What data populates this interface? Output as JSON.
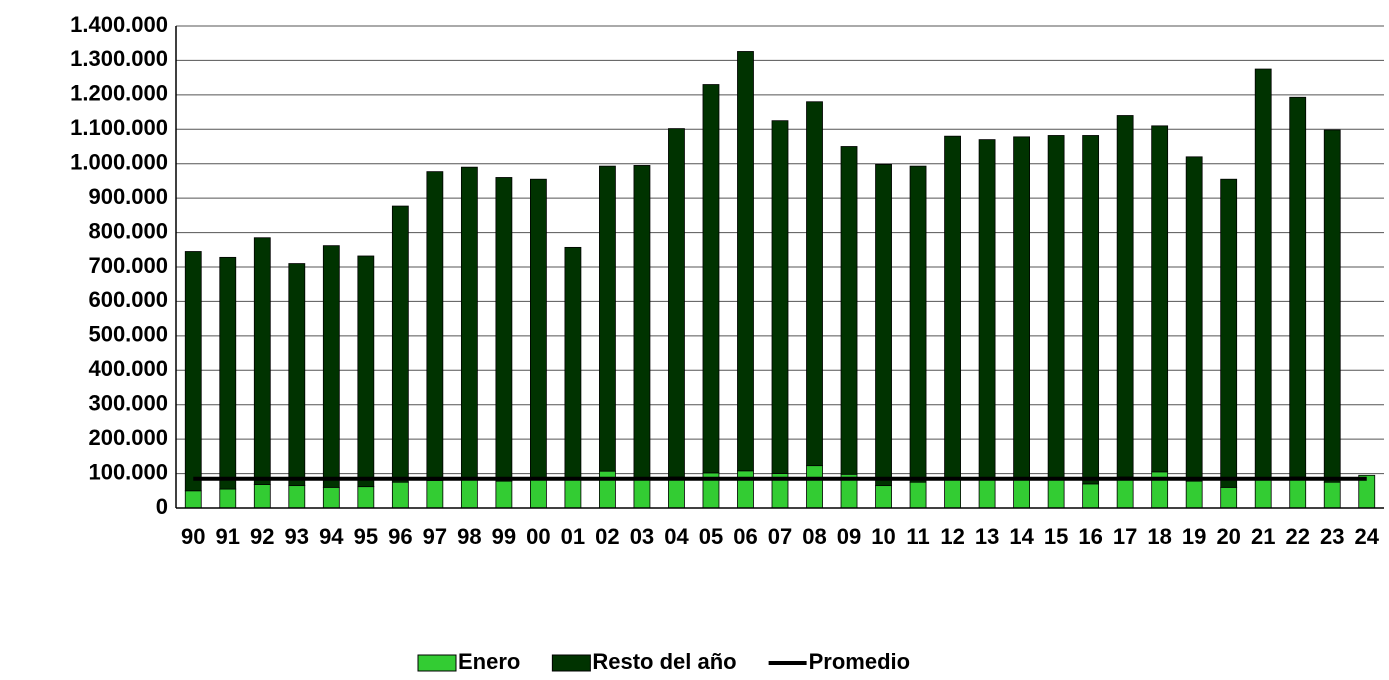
{
  "chart_data": {
    "type": "bar",
    "stacked": true,
    "categories": [
      "90",
      "91",
      "92",
      "93",
      "94",
      "95",
      "96",
      "97",
      "98",
      "99",
      "00",
      "01",
      "02",
      "03",
      "04",
      "05",
      "06",
      "07",
      "08",
      "09",
      "10",
      "11",
      "12",
      "13",
      "14",
      "15",
      "16",
      "17",
      "18",
      "19",
      "20",
      "21",
      "22",
      "23",
      "24"
    ],
    "series": [
      {
        "name": "Enero",
        "type": "bar",
        "color": "#33cc33",
        "values": [
          50000,
          55000,
          68000,
          65000,
          60000,
          62000,
          75000,
          80000,
          82000,
          78000,
          85000,
          85000,
          107000,
          88000,
          90000,
          102000,
          108000,
          100000,
          123000,
          98000,
          65000,
          75000,
          85000,
          88000,
          85000,
          88000,
          70000,
          90000,
          105000,
          78000,
          60000,
          88000,
          90000,
          75000,
          95000
        ]
      },
      {
        "name": "Resto del año",
        "type": "bar",
        "color": "#003300",
        "values": [
          695000,
          673000,
          717000,
          645000,
          702000,
          670000,
          802000,
          897000,
          908000,
          882000,
          870000,
          672000,
          886000,
          907000,
          1012000,
          1128000,
          1218000,
          1025000,
          1057000,
          952000,
          933000,
          918000,
          995000,
          982000,
          993000,
          994000,
          1012000,
          1050000,
          1005000,
          942000,
          895000,
          1187000,
          1103000,
          1023000,
          0
        ]
      },
      {
        "name": "Promedio",
        "type": "line",
        "color": "#000000",
        "values": [
          85000,
          85000,
          85000,
          85000,
          85000,
          85000,
          85000,
          85000,
          85000,
          85000,
          85000,
          85000,
          85000,
          85000,
          85000,
          85000,
          85000,
          85000,
          85000,
          85000,
          85000,
          85000,
          85000,
          85000,
          85000,
          85000,
          85000,
          85000,
          85000,
          85000,
          85000,
          85000,
          85000,
          85000,
          85000
        ]
      }
    ],
    "ylim": [
      0,
      1400000
    ],
    "yticks": [
      {
        "value": 0,
        "label": "0"
      },
      {
        "value": 100000,
        "label": "100.000"
      },
      {
        "value": 200000,
        "label": "200.000"
      },
      {
        "value": 300000,
        "label": "300.000"
      },
      {
        "value": 400000,
        "label": "400.000"
      },
      {
        "value": 500000,
        "label": "500.000"
      },
      {
        "value": 600000,
        "label": "600.000"
      },
      {
        "value": 700000,
        "label": "700.000"
      },
      {
        "value": 800000,
        "label": "800.000"
      },
      {
        "value": 900000,
        "label": "900.000"
      },
      {
        "value": 1000000,
        "label": "1.000.000"
      },
      {
        "value": 1100000,
        "label": "1.100.000"
      },
      {
        "value": 1200000,
        "label": "1.200.000"
      },
      {
        "value": 1300000,
        "label": "1.300.000"
      },
      {
        "value": 1400000,
        "label": "1.400.000"
      }
    ],
    "grid": true,
    "legend": "bottom"
  }
}
